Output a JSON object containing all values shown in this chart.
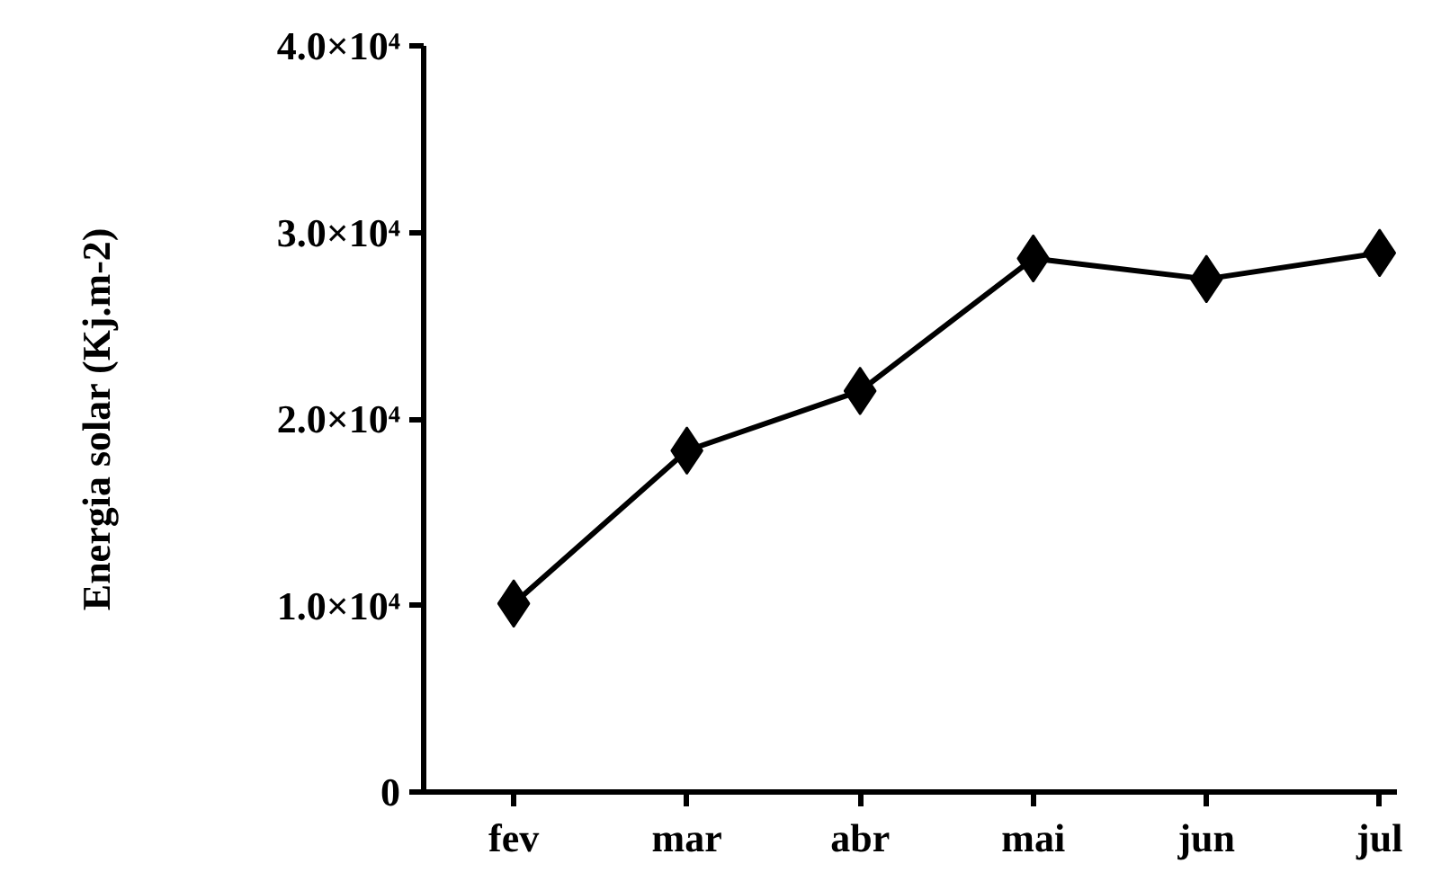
{
  "chart_data": {
    "type": "line",
    "ylabel": "Energia solar (Kj.m-2)",
    "categories": [
      "fev",
      "mar",
      "abr",
      "mai",
      "jun",
      "jul"
    ],
    "series": [
      {
        "color": "#000000",
        "values": [
          10100,
          18300,
          21500,
          28600,
          27500,
          28900
        ]
      }
    ],
    "ylim": [
      0,
      40000
    ],
    "yticks": [
      {
        "value": 0,
        "label": "0"
      },
      {
        "value": 10000,
        "label": "1.0×10⁴"
      },
      {
        "value": 20000,
        "label": "2.0×10⁴"
      },
      {
        "value": 30000,
        "label": "3.0×10⁴"
      },
      {
        "value": 40000,
        "label": "4.0×10⁴"
      }
    ],
    "marker": "diamond",
    "line_style": "solid"
  }
}
